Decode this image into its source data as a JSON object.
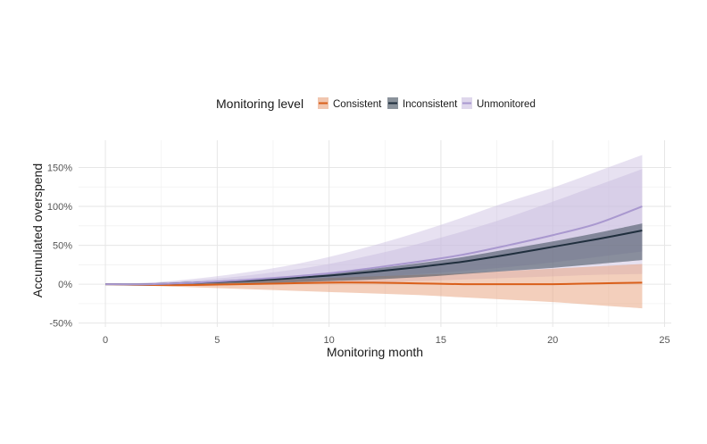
{
  "chart_data": {
    "type": "line",
    "xlabel": "Monitoring month",
    "ylabel": "Accumulated overspend",
    "xlim": [
      -1.2,
      25.3
    ],
    "ylim": [
      -55,
      185
    ],
    "x_ticks": [
      0,
      5,
      10,
      15,
      20,
      25
    ],
    "y_ticks": [
      -50,
      0,
      50,
      100,
      150
    ],
    "y_tick_suffix": "%",
    "grid": true,
    "legend": {
      "title": "Monitoring level",
      "placement": "top"
    },
    "x": [
      0,
      2,
      4,
      6,
      8,
      10,
      12,
      14,
      16,
      18,
      20,
      22,
      24
    ],
    "series": [
      {
        "name": "Consistent",
        "color": "#d95f1a",
        "band_color": "#e8a07a",
        "values": [
          0,
          -1,
          -1,
          0,
          1,
          2,
          2,
          1,
          0,
          0,
          0,
          1,
          2
        ],
        "lower": [
          0,
          -2,
          -4,
          -6,
          -8,
          -10,
          -12,
          -14,
          -17,
          -20,
          -23,
          -27,
          -31
        ],
        "upper": [
          0,
          0,
          2,
          4,
          6,
          8,
          10,
          12,
          14,
          17,
          20,
          23,
          26
        ]
      },
      {
        "name": "Inconsistent",
        "color": "#1f2e3d",
        "band_color": "#3c4a58",
        "values": [
          0,
          0,
          2,
          4,
          7,
          11,
          16,
          22,
          29,
          38,
          48,
          58,
          69
        ],
        "lower": [
          0,
          -1,
          0,
          1,
          2,
          4,
          6,
          9,
          13,
          17,
          21,
          26,
          31
        ],
        "upper": [
          0,
          1,
          3,
          6,
          9,
          14,
          20,
          27,
          35,
          45,
          55,
          66,
          78
        ]
      },
      {
        "name": "Unmonitored",
        "color": "#a998cf",
        "band_color": "#c9bddf",
        "values": [
          0,
          0,
          2,
          5,
          9,
          14,
          21,
          29,
          38,
          50,
          63,
          78,
          100
        ],
        "lower": [
          0,
          -1,
          0,
          2,
          4,
          6,
          9,
          13,
          17,
          22,
          28,
          35,
          42
        ],
        "upper": [
          0,
          2,
          5,
          10,
          17,
          26,
          38,
          52,
          68,
          86,
          106,
          127,
          148
        ],
        "outer_lower": [
          0,
          -2,
          -2,
          -1,
          0,
          1,
          2,
          4,
          6,
          8,
          10,
          12,
          13
        ],
        "outer_upper": [
          0,
          2,
          7,
          14,
          23,
          35,
          50,
          67,
          86,
          106,
          124,
          145,
          166
        ]
      }
    ]
  }
}
